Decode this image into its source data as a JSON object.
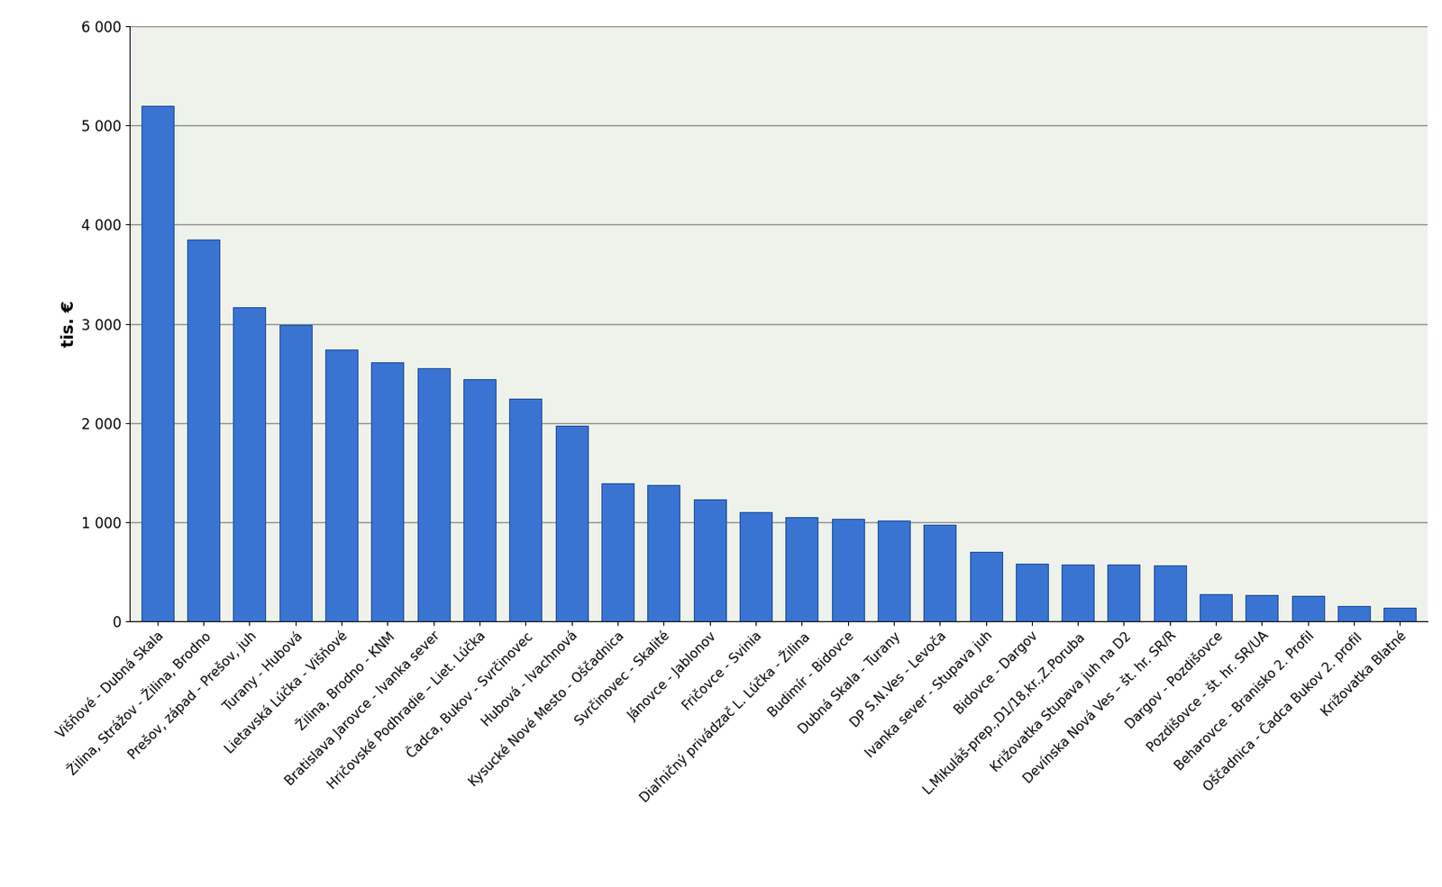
{
  "chart_data": {
    "type": "bar",
    "y_label": "tis. €",
    "categories": [
      "Višňové - Dubná Skala",
      "Žilina, Strážov - Žilina, Brodno",
      "Prešov, západ - Prešov, juh",
      "Turany - Hubová",
      "Lietavská Lúčka - Višňové",
      "Žilina, Brodno - KNM",
      "Bratislava Jarovce - Ivanka sever",
      "Hričovské Podhradie – Liet. Lúčka",
      "Čadca, Bukov - Svrčinovec",
      "Hubová - Ivachnová",
      "Kysucké Nové Mesto - Oščadnica",
      "Svrčinovec - Skalité",
      "Jánovce - Jablonov",
      "Fričovce - Svinia",
      "Diaľničný privádzač L. Lúčka - Žilina",
      "Budimír - Bidovce",
      "Dubná Skala - Turany",
      "DP S.N.Ves - Levoča",
      "Ivanka sever - Stupava juh",
      "Bidovce - Dargov",
      "L.Mikuláš-prep.,D1/18,kr.,Z.Poruba",
      "Križovatka Stupava juh na D2",
      "Devínska Nová Ves – št. hr. SR/R",
      "Dargov - Pozdišovce",
      "Pozdišovce - št. hr. SR/UA",
      "Beharovce - Branisko 2. Profil",
      "Oščadnica - Čadca Bukov 2. profil",
      "Križovatka Blatné"
    ],
    "values": [
      5200,
      3850,
      3170,
      2990,
      2740,
      2610,
      2550,
      2440,
      2240,
      1970,
      1390,
      1370,
      1230,
      1100,
      1050,
      1030,
      1010,
      970,
      700,
      580,
      570,
      565,
      560,
      270,
      260,
      250,
      150,
      130
    ],
    "color": "#3a74d2",
    "ylim": [
      0,
      6000
    ],
    "yticks": [
      {
        "value": 0,
        "label": "0"
      },
      {
        "value": 1000,
        "label": "1 000"
      },
      {
        "value": 2000,
        "label": "2 000"
      },
      {
        "value": 3000,
        "label": "3 000"
      },
      {
        "value": 4000,
        "label": "4 000"
      },
      {
        "value": 5000,
        "label": "5 000"
      },
      {
        "value": 6000,
        "label": "6 000"
      }
    ],
    "grid": true
  }
}
